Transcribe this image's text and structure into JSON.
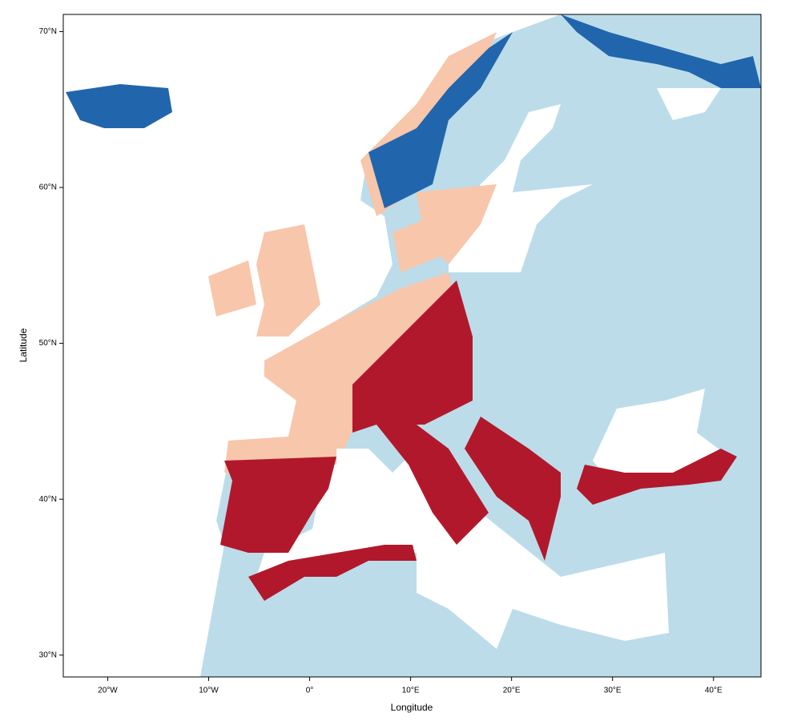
{
  "map": {
    "xlabel": "Longitude",
    "ylabel": "Latitude",
    "xlim": [
      -24.4,
      44.7
    ],
    "ylim": [
      28.6,
      71.1
    ],
    "xticks": [
      {
        "value": -20,
        "label": "20°W"
      },
      {
        "value": -10,
        "label": "10°W"
      },
      {
        "value": 0,
        "label": "0°"
      },
      {
        "value": 10,
        "label": "10°E"
      },
      {
        "value": 20,
        "label": "20°E"
      },
      {
        "value": 30,
        "label": "30°E"
      },
      {
        "value": 40,
        "label": "40°E"
      }
    ],
    "yticks": [
      {
        "value": 30,
        "label": "30°N"
      },
      {
        "value": 40,
        "label": "40°N"
      },
      {
        "value": 50,
        "label": "50°N"
      },
      {
        "value": 60,
        "label": "60°N"
      },
      {
        "value": 70,
        "label": "70°N"
      }
    ]
  }
}
